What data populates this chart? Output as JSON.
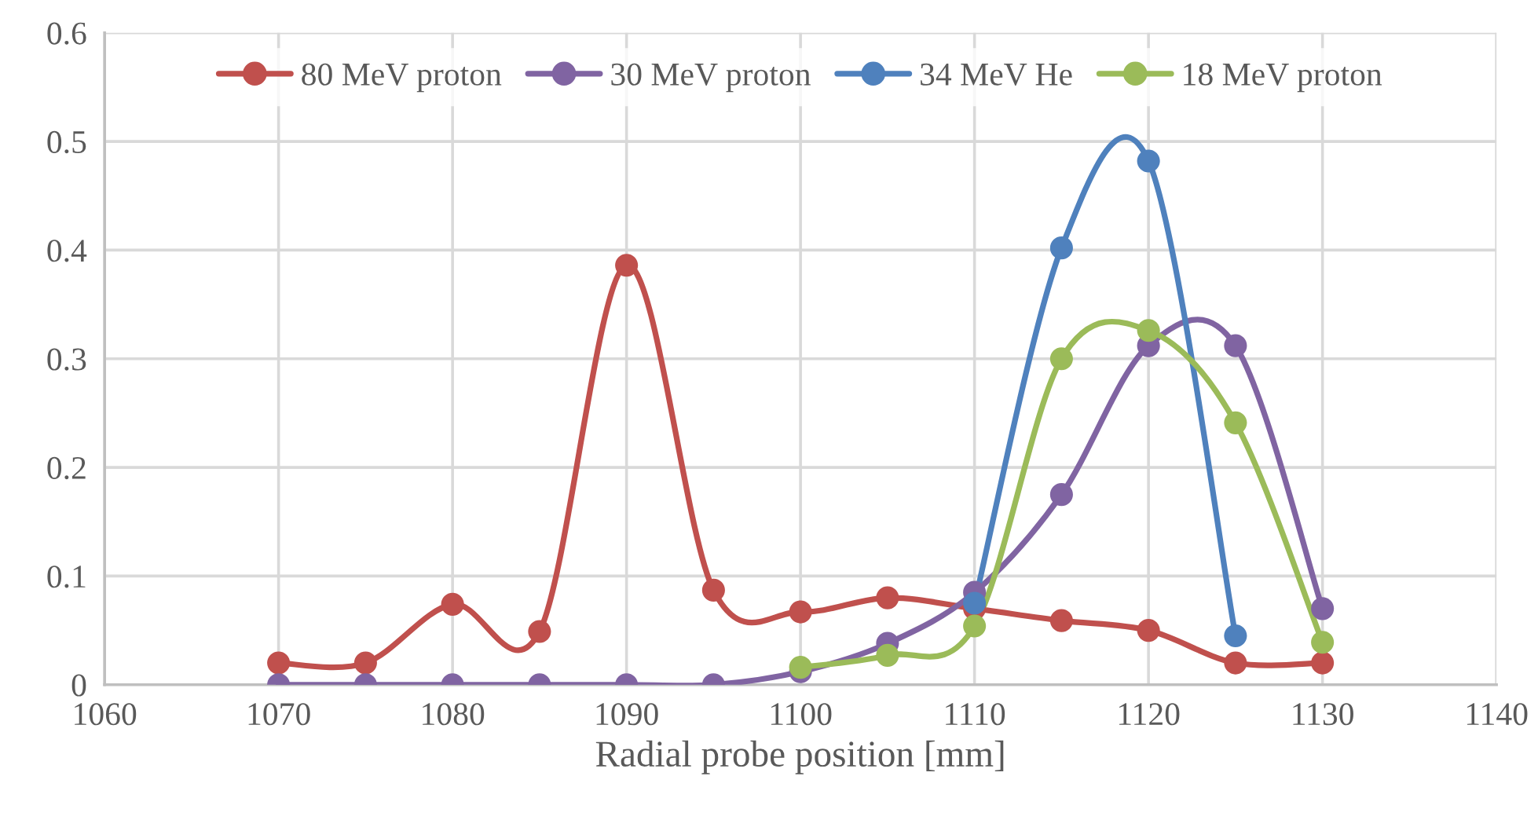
{
  "chart_data": {
    "type": "line",
    "xlabel": "Radial probe position [mm]",
    "xlim": [
      1060,
      1140
    ],
    "xticks": [
      1060,
      1070,
      1080,
      1090,
      1100,
      1110,
      1120,
      1130,
      1140
    ],
    "ylim": [
      0,
      0.6
    ],
    "yticks": [
      0,
      0.1,
      0.2,
      0.3,
      0.4,
      0.5,
      0.6
    ],
    "grid": true,
    "legend": "top",
    "marker": "circle",
    "line_style": "solid",
    "series": [
      {
        "name": "80 MeV proton",
        "color": "#c0504d",
        "x": [
          1070,
          1075,
          1080,
          1085,
          1090,
          1095,
          1100,
          1105,
          1110,
          1115,
          1120,
          1125,
          1130
        ],
        "values": [
          0.02,
          0.02,
          0.074,
          0.049,
          0.386,
          0.087,
          0.067,
          0.08,
          0.07,
          0.059,
          0.05,
          0.02,
          0.02
        ]
      },
      {
        "name": "30 MeV proton",
        "color": "#8064a2",
        "x": [
          1070,
          1075,
          1080,
          1085,
          1090,
          1095,
          1100,
          1105,
          1110,
          1115,
          1120,
          1125,
          1130
        ],
        "values": [
          0,
          0,
          0,
          0,
          0,
          0,
          0.012,
          0.038,
          0.085,
          0.175,
          0.312,
          0.312,
          0.07
        ]
      },
      {
        "name": "34 MeV He",
        "color": "#4f81bd",
        "x": [
          1110,
          1115,
          1120,
          1125
        ],
        "values": [
          0.075,
          0.402,
          0.482,
          0.045
        ]
      },
      {
        "name": "18 MeV proton",
        "color": "#9bbb59",
        "x": [
          1100,
          1105,
          1110,
          1115,
          1120,
          1125,
          1130
        ],
        "values": [
          0.016,
          0.027,
          0.054,
          0.3,
          0.326,
          0.241,
          0.039
        ]
      }
    ]
  }
}
